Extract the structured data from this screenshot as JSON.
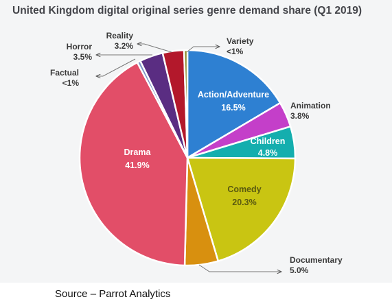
{
  "chart_data": {
    "type": "pie",
    "title": "United Kingdom digital original series genre demand share (Q1 2019)",
    "slices": [
      {
        "label": "Action/Adventure",
        "value_label": "16.5%",
        "value": 16.5,
        "color": "#2e80d2"
      },
      {
        "label": "Animation",
        "value_label": "3.8%",
        "value": 3.8,
        "color": "#c43fc9"
      },
      {
        "label": "Children",
        "value_label": "4.8%",
        "value": 4.8,
        "color": "#14aeae"
      },
      {
        "label": "Comedy",
        "value_label": "20.3%",
        "value": 20.3,
        "color": "#c9c512"
      },
      {
        "label": "Documentary",
        "value_label": "5.0%",
        "value": 5.0,
        "color": "#d8900f"
      },
      {
        "label": "Drama",
        "value_label": "41.9%",
        "value": 41.9,
        "color": "#e24e68"
      },
      {
        "label": "Factual",
        "value_label": "<1%",
        "value": 0.5,
        "color": "#7c93c6"
      },
      {
        "label": "Horror",
        "value_label": "3.5%",
        "value": 3.5,
        "color": "#5a2d82"
      },
      {
        "label": "Reality",
        "value_label": "3.2%",
        "value": 3.2,
        "color": "#b3182b"
      },
      {
        "label": "Variety",
        "value_label": "<1%",
        "value": 0.5,
        "color": "#8a8a2a"
      }
    ]
  },
  "source": "Source – Parrot Analytics"
}
